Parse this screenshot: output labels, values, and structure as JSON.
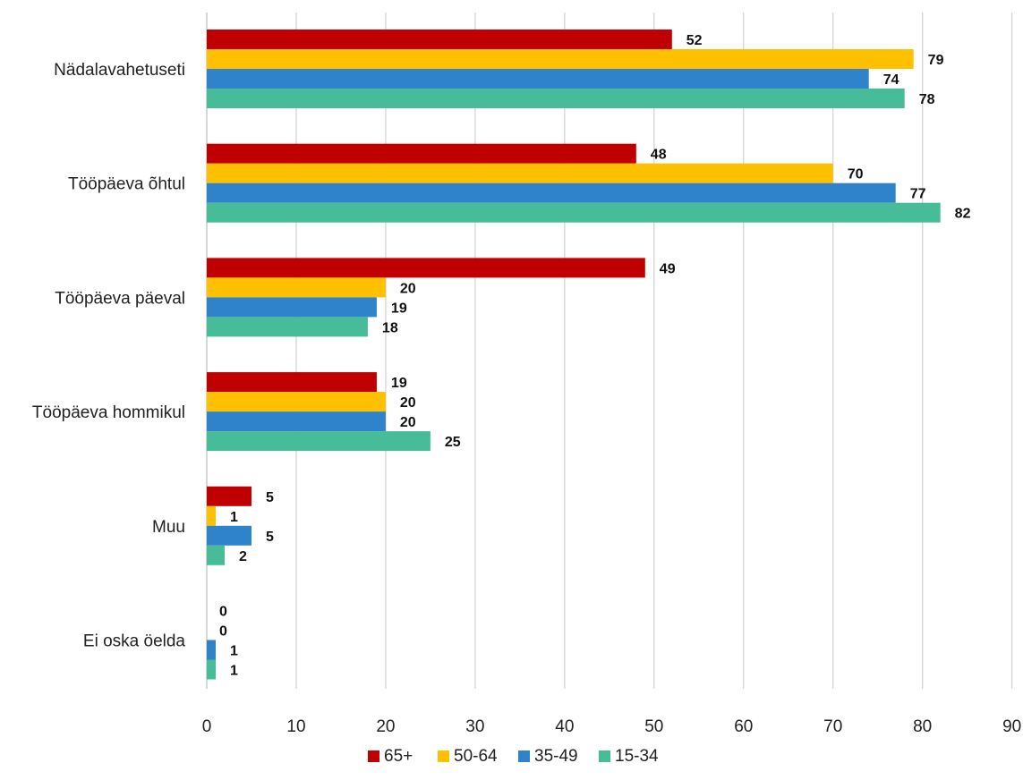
{
  "chart_data": {
    "type": "bar",
    "orientation": "horizontal",
    "title": "",
    "xlabel": "",
    "ylabel": "",
    "categories": [
      "Nädalavahetuseti",
      "Tööpäeva õhtul",
      "Tööpäeva päeval",
      "Tööpäeva hommikul",
      "Muu",
      "Ei oska öelda"
    ],
    "series": [
      {
        "name": "65+",
        "color": "#C00000",
        "values": [
          52,
          48,
          49,
          19,
          5,
          0
        ]
      },
      {
        "name": "50-64",
        "color": "#FFC000",
        "values": [
          79,
          70,
          20,
          20,
          1,
          0
        ]
      },
      {
        "name": "35-49",
        "color": "#2E83CB",
        "values": [
          74,
          77,
          19,
          20,
          5,
          1
        ]
      },
      {
        "name": "15-34",
        "color": "#46BD98",
        "values": [
          78,
          82,
          18,
          25,
          2,
          1
        ]
      }
    ],
    "xlim": [
      0,
      90
    ],
    "xticks": [
      0,
      10,
      20,
      30,
      40,
      50,
      60,
      70,
      80,
      90
    ],
    "grid": "vertical",
    "legend_position": "bottom",
    "data_labels": true
  }
}
